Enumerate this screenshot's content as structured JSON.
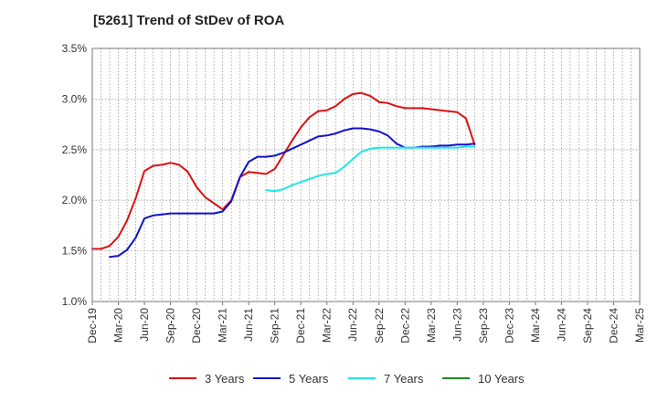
{
  "chart_data": {
    "type": "line",
    "title": "[5261]  Trend of StDev of ROA",
    "xlabel": "",
    "ylabel": "",
    "ylim": [
      1.0,
      3.5
    ],
    "y_ticks": [
      "1.0%",
      "1.5%",
      "2.0%",
      "2.5%",
      "3.0%",
      "3.5%"
    ],
    "x_ticks": [
      "Dec-19",
      "Mar-20",
      "Jun-20",
      "Sep-20",
      "Dec-20",
      "Mar-21",
      "Jun-21",
      "Sep-21",
      "Dec-21",
      "Mar-22",
      "Jun-22",
      "Sep-22",
      "Dec-22",
      "Mar-23",
      "Jun-23",
      "Sep-23",
      "Dec-23",
      "Mar-24",
      "Jun-24",
      "Sep-24",
      "Dec-24",
      "Mar-25"
    ],
    "grid": true,
    "legend_position": "bottom",
    "series": [
      {
        "name": "3 Years",
        "color": "#dd1111",
        "points": [
          [
            0,
            1.52
          ],
          [
            1,
            1.52
          ],
          [
            2,
            1.55
          ],
          [
            3,
            1.64
          ],
          [
            4,
            1.8
          ],
          [
            5,
            2.02
          ],
          [
            6,
            2.29
          ],
          [
            7,
            2.34
          ],
          [
            8,
            2.35
          ],
          [
            9,
            2.37
          ],
          [
            10,
            2.35
          ],
          [
            11,
            2.28
          ],
          [
            12,
            2.13
          ],
          [
            13,
            2.03
          ],
          [
            14,
            1.97
          ],
          [
            15,
            1.91
          ],
          [
            16,
            2.0
          ],
          [
            17,
            2.23
          ],
          [
            18,
            2.28
          ],
          [
            19,
            2.27
          ],
          [
            20,
            2.26
          ],
          [
            21,
            2.31
          ],
          [
            22,
            2.45
          ],
          [
            23,
            2.59
          ],
          [
            24,
            2.72
          ],
          [
            25,
            2.82
          ],
          [
            26,
            2.88
          ],
          [
            27,
            2.89
          ],
          [
            28,
            2.93
          ],
          [
            29,
            3.0
          ],
          [
            30,
            3.05
          ],
          [
            31,
            3.06
          ],
          [
            32,
            3.03
          ],
          [
            33,
            2.97
          ],
          [
            34,
            2.96
          ],
          [
            35,
            2.93
          ],
          [
            36,
            2.91
          ],
          [
            37,
            2.91
          ],
          [
            38,
            2.91
          ],
          [
            39,
            2.9
          ],
          [
            40,
            2.89
          ],
          [
            41,
            2.88
          ],
          [
            42,
            2.87
          ],
          [
            43,
            2.81
          ],
          [
            44,
            2.55
          ]
        ]
      },
      {
        "name": "5 Years",
        "color": "#1111cc",
        "points": [
          [
            2,
            1.44
          ],
          [
            3,
            1.45
          ],
          [
            4,
            1.51
          ],
          [
            5,
            1.63
          ],
          [
            6,
            1.82
          ],
          [
            7,
            1.85
          ],
          [
            8,
            1.86
          ],
          [
            9,
            1.87
          ],
          [
            10,
            1.87
          ],
          [
            11,
            1.87
          ],
          [
            12,
            1.87
          ],
          [
            13,
            1.87
          ],
          [
            14,
            1.87
          ],
          [
            15,
            1.89
          ],
          [
            16,
            1.99
          ],
          [
            17,
            2.23
          ],
          [
            18,
            2.38
          ],
          [
            19,
            2.43
          ],
          [
            20,
            2.43
          ],
          [
            21,
            2.44
          ],
          [
            22,
            2.47
          ],
          [
            23,
            2.51
          ],
          [
            24,
            2.55
          ],
          [
            25,
            2.59
          ],
          [
            26,
            2.63
          ],
          [
            27,
            2.64
          ],
          [
            28,
            2.66
          ],
          [
            29,
            2.69
          ],
          [
            30,
            2.71
          ],
          [
            31,
            2.71
          ],
          [
            32,
            2.7
          ],
          [
            33,
            2.68
          ],
          [
            34,
            2.64
          ],
          [
            35,
            2.56
          ],
          [
            36,
            2.52
          ],
          [
            37,
            2.52
          ],
          [
            38,
            2.53
          ],
          [
            39,
            2.53
          ],
          [
            40,
            2.54
          ],
          [
            41,
            2.54
          ],
          [
            42,
            2.55
          ],
          [
            43,
            2.55
          ],
          [
            44,
            2.56
          ]
        ]
      },
      {
        "name": "7 Years",
        "color": "#22e5e5",
        "points": [
          [
            20,
            2.1
          ],
          [
            21,
            2.09
          ],
          [
            22,
            2.11
          ],
          [
            23,
            2.15
          ],
          [
            24,
            2.18
          ],
          [
            25,
            2.21
          ],
          [
            26,
            2.24
          ],
          [
            27,
            2.26
          ],
          [
            28,
            2.27
          ],
          [
            29,
            2.33
          ],
          [
            30,
            2.41
          ],
          [
            31,
            2.48
          ],
          [
            32,
            2.51
          ],
          [
            33,
            2.52
          ],
          [
            34,
            2.52
          ],
          [
            35,
            2.52
          ],
          [
            36,
            2.52
          ],
          [
            37,
            2.52
          ],
          [
            38,
            2.52
          ],
          [
            39,
            2.52
          ],
          [
            40,
            2.52
          ],
          [
            41,
            2.52
          ],
          [
            42,
            2.52
          ],
          [
            43,
            2.53
          ],
          [
            44,
            2.53
          ]
        ]
      },
      {
        "name": "10 Years",
        "color": "#228822",
        "points": []
      }
    ]
  }
}
